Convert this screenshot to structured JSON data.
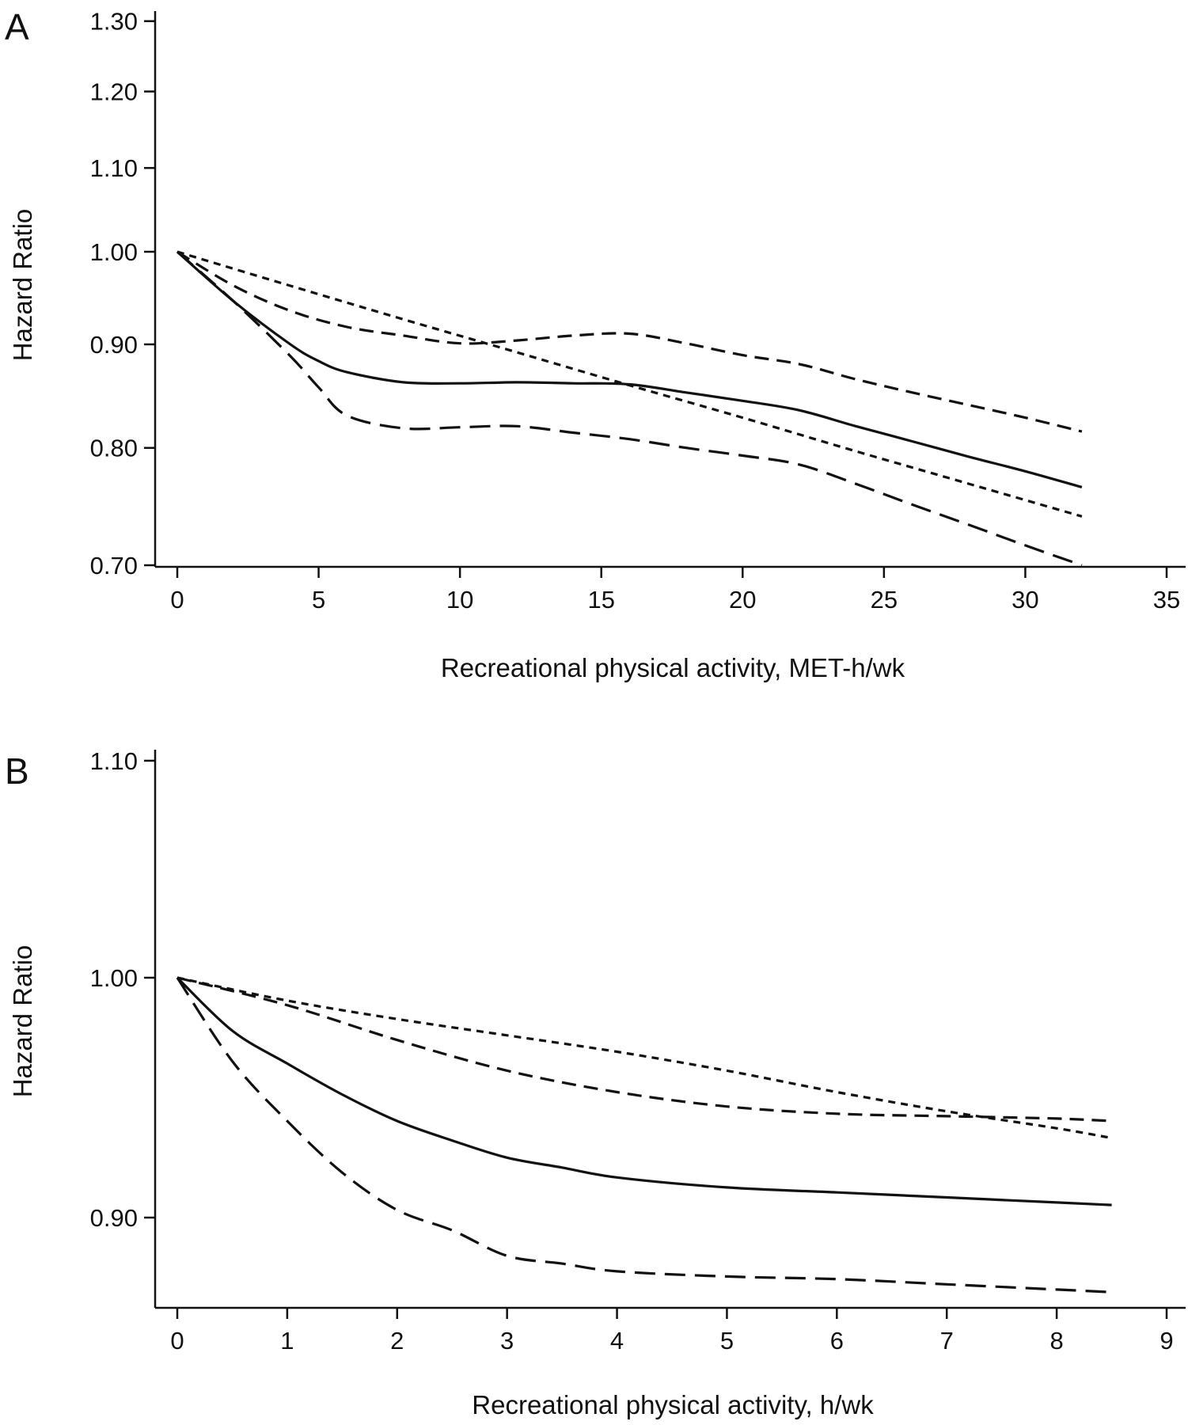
{
  "chart_data": [
    {
      "panel_label": "A",
      "type": "line",
      "xlabel": "Recreational physical activity, MET-h/wk",
      "ylabel": "Hazard Ratio",
      "xlim": [
        0,
        35
      ],
      "ylim": [
        0.7,
        1.3
      ],
      "y_scale": "log",
      "xticks": [
        0,
        5,
        10,
        15,
        20,
        25,
        30,
        35
      ],
      "yticks": [
        0.7,
        0.8,
        0.9,
        1.0,
        1.1,
        1.2,
        1.3
      ],
      "xtick_labels": [
        "0",
        "5",
        "10",
        "15",
        "20",
        "25",
        "30",
        "35"
      ],
      "ytick_labels": [
        "0.70",
        "0.80",
        "0.90",
        "1.00",
        "1.10",
        "1.20",
        "1.30"
      ],
      "grid": false,
      "legend": "none",
      "series": [
        {
          "style": "solid",
          "x": [
            0,
            2,
            4,
            5,
            6,
            8,
            10,
            12,
            14,
            16,
            18,
            20,
            22,
            24,
            26,
            28,
            30,
            32
          ],
          "y": [
            1.0,
            0.945,
            0.9,
            0.883,
            0.872,
            0.862,
            0.861,
            0.862,
            0.861,
            0.86,
            0.852,
            0.844,
            0.835,
            0.82,
            0.806,
            0.792,
            0.779,
            0.765
          ]
        },
        {
          "style": "long-dash",
          "x": [
            0,
            2,
            4,
            5,
            6,
            8,
            10,
            12,
            14,
            16,
            18,
            20,
            22,
            24,
            26,
            28,
            30,
            32
          ],
          "y": [
            1.0,
            0.945,
            0.888,
            0.857,
            0.83,
            0.818,
            0.819,
            0.82,
            0.814,
            0.808,
            0.8,
            0.793,
            0.785,
            0.768,
            0.75,
            0.733,
            0.716,
            0.7
          ]
        },
        {
          "style": "dash",
          "x": [
            0,
            2,
            4,
            6,
            8,
            10,
            12,
            14,
            16,
            18,
            20,
            22,
            24,
            26,
            28,
            30,
            32
          ],
          "y": [
            1.0,
            0.962,
            0.935,
            0.918,
            0.909,
            0.901,
            0.904,
            0.909,
            0.911,
            0.901,
            0.889,
            0.88,
            0.865,
            0.852,
            0.84,
            0.828,
            0.815
          ]
        },
        {
          "style": "short-dash",
          "x": [
            0,
            4,
            8,
            12,
            16,
            20,
            24,
            28,
            32
          ],
          "y": [
            1.0,
            0.962,
            0.926,
            0.892,
            0.859,
            0.828,
            0.797,
            0.768,
            0.74
          ]
        }
      ]
    },
    {
      "panel_label": "B",
      "type": "line",
      "xlabel": "Recreational physical activity, h/wk",
      "ylabel": "Hazard Ratio",
      "xlim": [
        0,
        9
      ],
      "ylim": [
        0.87,
        1.11
      ],
      "y_scale": "log",
      "xticks": [
        0,
        1,
        2,
        3,
        4,
        5,
        6,
        7,
        8,
        9
      ],
      "yticks": [
        0.9,
        1.0,
        1.1
      ],
      "xtick_labels": [
        "0",
        "1",
        "2",
        "3",
        "4",
        "5",
        "6",
        "7",
        "8",
        "9"
      ],
      "ytick_labels": [
        "0.90",
        "1.00",
        "1.10"
      ],
      "grid": false,
      "legend": "none",
      "series": [
        {
          "style": "solid",
          "x": [
            0,
            0.5,
            1,
            1.5,
            2,
            2.5,
            3,
            3.5,
            4,
            5,
            6,
            7,
            8,
            8.5
          ],
          "y": [
            1.0,
            0.977,
            0.963,
            0.95,
            0.939,
            0.931,
            0.924,
            0.92,
            0.916,
            0.912,
            0.91,
            0.908,
            0.906,
            0.905
          ]
        },
        {
          "style": "long-dash",
          "x": [
            0,
            0.5,
            1,
            1.5,
            2,
            2.5,
            3,
            3.5,
            4,
            5,
            6,
            7,
            8,
            8.5
          ],
          "y": [
            1.0,
            0.964,
            0.939,
            0.918,
            0.903,
            0.895,
            0.885,
            0.882,
            0.879,
            0.877,
            0.876,
            0.874,
            0.872,
            0.871
          ]
        },
        {
          "style": "dash",
          "x": [
            0,
            1,
            2,
            3,
            4,
            5,
            6,
            7,
            8,
            8.5
          ],
          "y": [
            1.0,
            0.988,
            0.973,
            0.96,
            0.951,
            0.945,
            0.942,
            0.941,
            0.94,
            0.939
          ]
        },
        {
          "style": "short-dash",
          "x": [
            0,
            1,
            2,
            3,
            4,
            5,
            6,
            7,
            8,
            8.5
          ],
          "y": [
            1.0,
            0.99,
            0.982,
            0.975,
            0.968,
            0.96,
            0.951,
            0.943,
            0.936,
            0.932
          ]
        }
      ]
    }
  ]
}
